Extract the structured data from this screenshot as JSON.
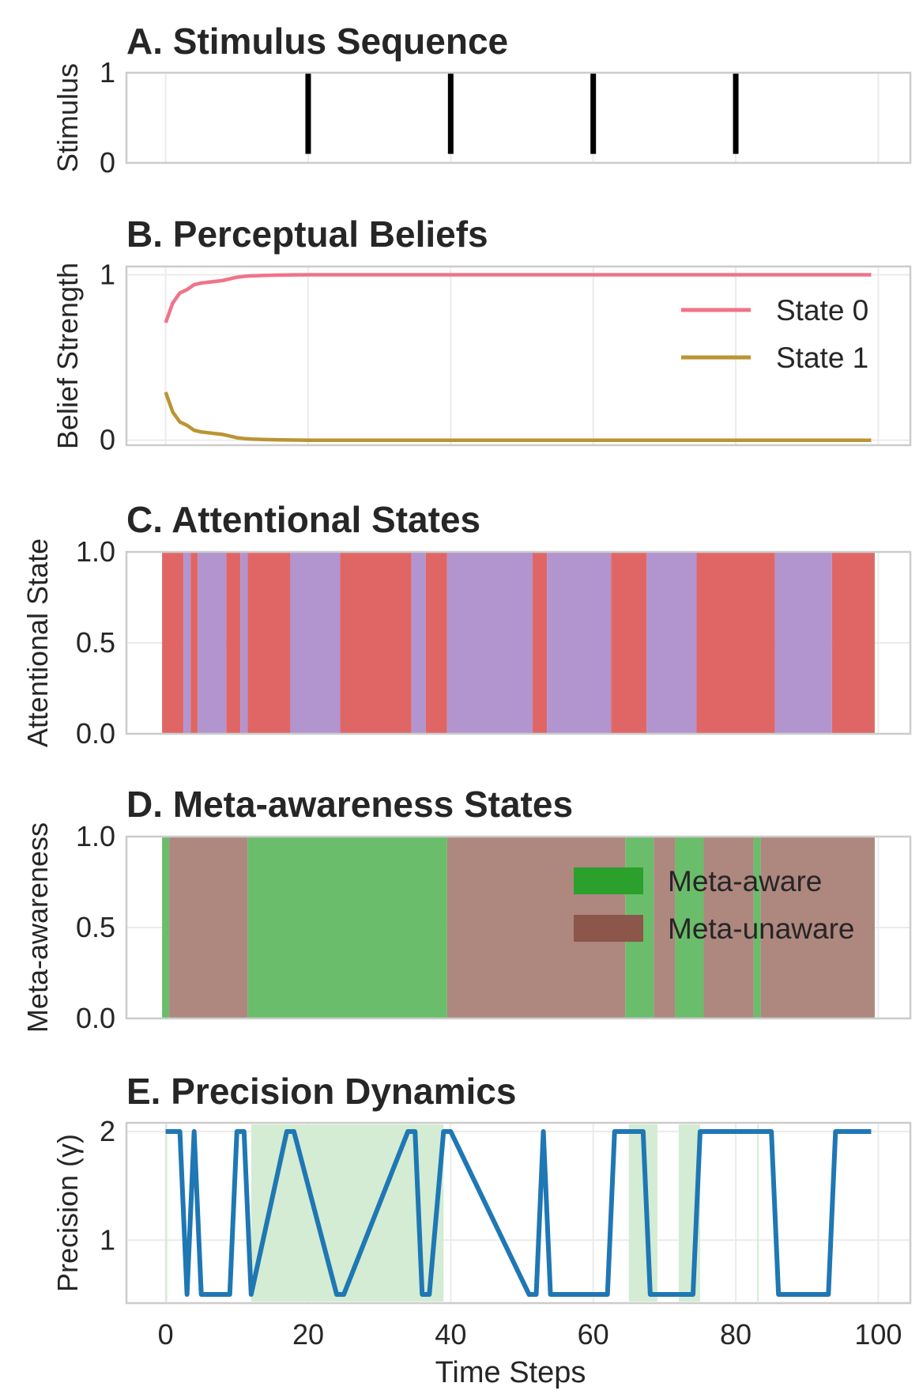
{
  "x_axis": {
    "label": "Time Steps",
    "ticks": [
      0,
      20,
      40,
      60,
      80,
      100
    ],
    "tick_labels": [
      "0",
      "20",
      "40",
      "60",
      "80",
      "100"
    ],
    "range": [
      -5.5,
      104.5
    ]
  },
  "colors": {
    "state0": "#f07389",
    "state1": "#bb9433",
    "focused": "#e06666",
    "mind_wandering": "#b294cf",
    "meta_aware": "#2ca02c",
    "meta_aware_fill": "#6abd6a",
    "meta_unaware": "#8c564b",
    "meta_unaware_fill": "#ae877f",
    "precision": "#1f77b4",
    "precision_band": "#d3ecd3",
    "stimulus": "#000000"
  },
  "chart_data": [
    {
      "type": "event",
      "title": "A. Stimulus Sequence",
      "ylabel": "Stimulus",
      "ylim": [
        0,
        1
      ],
      "yticks": [
        0,
        1
      ],
      "ytick_labels": [
        "0",
        "1"
      ],
      "events": [
        20,
        40,
        60,
        80
      ],
      "event_y": [
        0.1,
        1.0
      ]
    },
    {
      "type": "line",
      "title": "B. Perceptual Beliefs",
      "ylabel": "Belief Strength",
      "ylim": [
        -0.03,
        1.05
      ],
      "yticks": [
        0,
        1
      ],
      "ytick_labels": [
        "0",
        "1"
      ],
      "legend": {
        "position": "upper-right"
      },
      "x": [
        0,
        1,
        2,
        3,
        4,
        5,
        6,
        7,
        8,
        9,
        10,
        11,
        12,
        14,
        16,
        18,
        20,
        30,
        40,
        50,
        60,
        70,
        80,
        90,
        99
      ],
      "series": [
        {
          "name": "State 0",
          "color": "#f07389",
          "values": [
            0.71,
            0.83,
            0.89,
            0.91,
            0.94,
            0.95,
            0.955,
            0.96,
            0.965,
            0.975,
            0.985,
            0.99,
            0.993,
            0.996,
            0.998,
            0.999,
            1.0,
            1.0,
            1.0,
            1.0,
            1.0,
            1.0,
            1.0,
            1.0,
            1.0
          ]
        },
        {
          "name": "State 1",
          "color": "#bb9433",
          "values": [
            0.29,
            0.17,
            0.11,
            0.09,
            0.06,
            0.05,
            0.045,
            0.04,
            0.035,
            0.025,
            0.015,
            0.01,
            0.007,
            0.004,
            0.002,
            0.001,
            0.0,
            0.0,
            0.0,
            0.0,
            0.0,
            0.0,
            0.0,
            0.0,
            0.0
          ]
        }
      ]
    },
    {
      "type": "area",
      "title": "C. Attentional States",
      "ylabel": "Attentional State",
      "ylim": [
        0,
        1
      ],
      "yticks": [
        0,
        0.5,
        1.0
      ],
      "ytick_labels": [
        "0.0",
        "0.5",
        "1.0"
      ],
      "bands": [
        {
          "start": -0.5,
          "end": 2.5,
          "state": "focused"
        },
        {
          "start": 2.5,
          "end": 3.5,
          "state": "mind_wandering"
        },
        {
          "start": 3.5,
          "end": 4.5,
          "state": "focused"
        },
        {
          "start": 4.5,
          "end": 8.5,
          "state": "mind_wandering"
        },
        {
          "start": 8.5,
          "end": 10.5,
          "state": "focused"
        },
        {
          "start": 10.5,
          "end": 11.5,
          "state": "mind_wandering"
        },
        {
          "start": 11.5,
          "end": 17.5,
          "state": "focused"
        },
        {
          "start": 17.5,
          "end": 24.5,
          "state": "mind_wandering"
        },
        {
          "start": 24.5,
          "end": 34.5,
          "state": "focused"
        },
        {
          "start": 34.5,
          "end": 36.5,
          "state": "mind_wandering"
        },
        {
          "start": 36.5,
          "end": 39.5,
          "state": "focused"
        },
        {
          "start": 39.5,
          "end": 51.5,
          "state": "mind_wandering"
        },
        {
          "start": 51.5,
          "end": 53.5,
          "state": "focused"
        },
        {
          "start": 53.5,
          "end": 62.5,
          "state": "mind_wandering"
        },
        {
          "start": 62.5,
          "end": 67.5,
          "state": "focused"
        },
        {
          "start": 67.5,
          "end": 74.5,
          "state": "mind_wandering"
        },
        {
          "start": 74.5,
          "end": 85.5,
          "state": "focused"
        },
        {
          "start": 85.5,
          "end": 93.5,
          "state": "mind_wandering"
        },
        {
          "start": 93.5,
          "end": 99.5,
          "state": "focused"
        }
      ]
    },
    {
      "type": "area",
      "title": "D. Meta-awareness States",
      "ylabel": "Meta-awareness",
      "ylim": [
        0,
        1
      ],
      "yticks": [
        0,
        0.5,
        1.0
      ],
      "ytick_labels": [
        "0.0",
        "0.5",
        "1.0"
      ],
      "legend": {
        "position": "upper-right",
        "entries": [
          {
            "name": "Meta-aware",
            "key": "meta_aware"
          },
          {
            "name": "Meta-unaware",
            "key": "meta_unaware"
          }
        ]
      },
      "bands": [
        {
          "start": -0.5,
          "end": 0.5,
          "state": "meta_aware"
        },
        {
          "start": 0.5,
          "end": 11.5,
          "state": "meta_unaware"
        },
        {
          "start": 11.5,
          "end": 39.5,
          "state": "meta_aware"
        },
        {
          "start": 39.5,
          "end": 64.5,
          "state": "meta_unaware"
        },
        {
          "start": 64.5,
          "end": 68.5,
          "state": "meta_aware"
        },
        {
          "start": 68.5,
          "end": 71.5,
          "state": "meta_unaware"
        },
        {
          "start": 71.5,
          "end": 75.5,
          "state": "meta_aware"
        },
        {
          "start": 75.5,
          "end": 82.5,
          "state": "meta_unaware"
        },
        {
          "start": 82.5,
          "end": 83.5,
          "state": "meta_aware"
        },
        {
          "start": 83.5,
          "end": 99.5,
          "state": "meta_unaware"
        }
      ]
    },
    {
      "type": "line",
      "title": "E. Precision Dynamics",
      "ylabel": "Precision (γ)",
      "ylim": [
        0.42,
        2.08
      ],
      "yticks": [
        1,
        2
      ],
      "ytick_labels": [
        "1",
        "2"
      ],
      "bands": [
        [
          0,
          0.2
        ],
        [
          12,
          39
        ],
        [
          65,
          69
        ],
        [
          72,
          75
        ],
        [
          83,
          83.2
        ]
      ],
      "series": [
        {
          "name": "Precision",
          "x": [
            0,
            2,
            3,
            4,
            5,
            9,
            10,
            11,
            12,
            17,
            18,
            24,
            25,
            34,
            35,
            36,
            37,
            39,
            40,
            51,
            52,
            53,
            54,
            62,
            63,
            67,
            68,
            74,
            75,
            85,
            86,
            93,
            94,
            99
          ],
          "values": [
            2,
            2,
            0.5,
            2,
            0.5,
            0.5,
            2,
            2,
            0.5,
            2,
            2,
            0.5,
            0.5,
            2,
            2,
            0.5,
            0.5,
            2,
            2,
            0.5,
            0.5,
            2,
            0.5,
            0.5,
            2,
            2,
            0.5,
            0.5,
            2,
            2,
            0.5,
            0.5,
            2,
            2
          ]
        }
      ]
    }
  ]
}
